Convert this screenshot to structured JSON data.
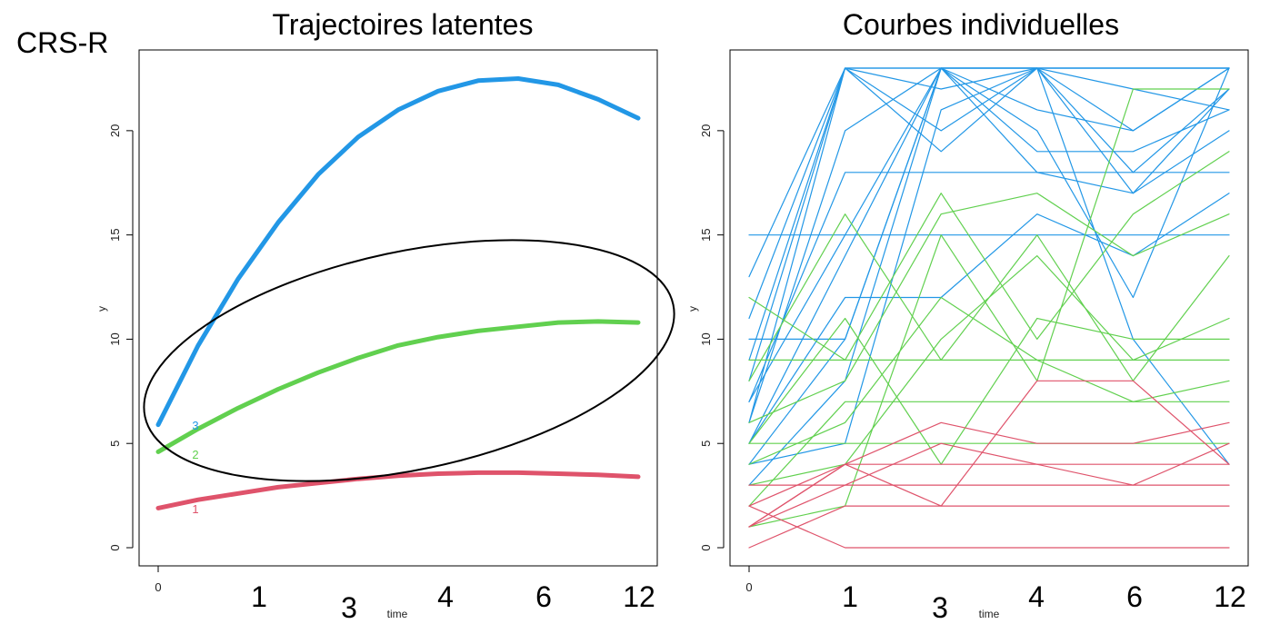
{
  "page": {
    "label": "CRS-R"
  },
  "colors": {
    "group1": "#df536b",
    "group2": "#61d04f",
    "group3": "#2297e6",
    "ellipse": "#000000"
  },
  "chart_data": [
    {
      "type": "line",
      "title": "Trajectoires latentes",
      "xlabel": "time",
      "ylabel": "y",
      "xlim": [
        0,
        12
      ],
      "ylim": [
        0,
        23
      ],
      "grid": false,
      "x_ticks": [
        0
      ],
      "y_ticks": [
        0,
        5,
        10,
        15,
        20
      ],
      "time_labels": [
        "1",
        "3",
        "4",
        "6",
        "12"
      ],
      "series": [
        {
          "name": "1",
          "color": "#df536b",
          "x": [
            0,
            1,
            2,
            3,
            4,
            5,
            6,
            7,
            8,
            9,
            10,
            11,
            12
          ],
          "values": [
            1.9,
            2.3,
            2.6,
            2.9,
            3.1,
            3.3,
            3.45,
            3.55,
            3.6,
            3.6,
            3.55,
            3.5,
            3.4
          ]
        },
        {
          "name": "2",
          "color": "#61d04f",
          "x": [
            0,
            1,
            2,
            3,
            4,
            5,
            6,
            7,
            8,
            9,
            10,
            11,
            12
          ],
          "values": [
            4.6,
            5.7,
            6.7,
            7.6,
            8.4,
            9.1,
            9.7,
            10.1,
            10.4,
            10.6,
            10.8,
            10.85,
            10.8
          ]
        },
        {
          "name": "3",
          "color": "#2297e6",
          "x": [
            0,
            1,
            2,
            3,
            4,
            5,
            6,
            7,
            8,
            9,
            10,
            11,
            12
          ],
          "values": [
            5.9,
            9.7,
            12.9,
            15.6,
            17.9,
            19.7,
            21.0,
            21.9,
            22.4,
            22.5,
            22.2,
            21.5,
            20.6
          ]
        }
      ]
    },
    {
      "type": "line",
      "title": "Courbes individuelles",
      "xlabel": "time",
      "ylabel": "y",
      "xlim": [
        0,
        12
      ],
      "ylim": [
        0,
        23
      ],
      "grid": false,
      "x_ticks": [
        0
      ],
      "y_ticks": [
        0,
        5,
        10,
        15,
        20
      ],
      "time_labels": [
        "1",
        "3",
        "4",
        "6",
        "12"
      ],
      "x_positions": [
        0,
        2.4,
        4.8,
        7.2,
        9.6,
        12
      ],
      "series": [
        {
          "name": "",
          "color": "#2297e6",
          "values": [
            13,
            23,
            23,
            23,
            23,
            23
          ]
        },
        {
          "name": "",
          "color": "#2297e6",
          "values": [
            15,
            15,
            15,
            15,
            15,
            15
          ]
        },
        {
          "name": "",
          "color": "#2297e6",
          "values": [
            10,
            10,
            23,
            23,
            20,
            23
          ]
        },
        {
          "name": "",
          "color": "#2297e6",
          "values": [
            8,
            23,
            20,
            23,
            18,
            22
          ]
        },
        {
          "name": "",
          "color": "#2297e6",
          "values": [
            7,
            18,
            18,
            18,
            18,
            18
          ]
        },
        {
          "name": "",
          "color": "#2297e6",
          "values": [
            6,
            20,
            23,
            19,
            19,
            21
          ]
        },
        {
          "name": "",
          "color": "#2297e6",
          "values": [
            5,
            12,
            12,
            16,
            14,
            17
          ]
        },
        {
          "name": "",
          "color": "#2297e6",
          "values": [
            4,
            10,
            23,
            20,
            12,
            23
          ]
        },
        {
          "name": "",
          "color": "#2297e6",
          "values": [
            9,
            23,
            22,
            23,
            23,
            23
          ]
        },
        {
          "name": "",
          "color": "#2297e6",
          "values": [
            4,
            5,
            21,
            23,
            10,
            4
          ]
        },
        {
          "name": "",
          "color": "#2297e6",
          "values": [
            7,
            15,
            23,
            23,
            17,
            22
          ]
        },
        {
          "name": "",
          "color": "#2297e6",
          "values": [
            3,
            8,
            23,
            23,
            22,
            21
          ]
        },
        {
          "name": "",
          "color": "#2297e6",
          "values": [
            11,
            23,
            19,
            23,
            23,
            23
          ]
        },
        {
          "name": "",
          "color": "#2297e6",
          "values": [
            5,
            14,
            23,
            18,
            17,
            20
          ]
        },
        {
          "name": "",
          "color": "#2297e6",
          "values": [
            6,
            23,
            23,
            21,
            20,
            23
          ]
        },
        {
          "name": "",
          "color": "#61d04f",
          "values": [
            12,
            9,
            17,
            10,
            16,
            19
          ]
        },
        {
          "name": "",
          "color": "#61d04f",
          "values": [
            8,
            16,
            9,
            15,
            8,
            14
          ]
        },
        {
          "name": "",
          "color": "#61d04f",
          "values": [
            6,
            8,
            16,
            17,
            14,
            16
          ]
        },
        {
          "name": "",
          "color": "#61d04f",
          "values": [
            5,
            11,
            4,
            11,
            10,
            10
          ]
        },
        {
          "name": "",
          "color": "#61d04f",
          "values": [
            4,
            6,
            12,
            9,
            7,
            8
          ]
        },
        {
          "name": "",
          "color": "#61d04f",
          "values": [
            3,
            4,
            10,
            14,
            9,
            11
          ]
        },
        {
          "name": "",
          "color": "#61d04f",
          "values": [
            2,
            7,
            7,
            7,
            7,
            7
          ]
        },
        {
          "name": "",
          "color": "#61d04f",
          "values": [
            9,
            9,
            9,
            9,
            9,
            9
          ]
        },
        {
          "name": "",
          "color": "#61d04f",
          "values": [
            1,
            2,
            15,
            8,
            22,
            22
          ]
        },
        {
          "name": "",
          "color": "#61d04f",
          "values": [
            5,
            5,
            5,
            5,
            5,
            5
          ]
        },
        {
          "name": "",
          "color": "#df536b",
          "values": [
            1,
            4,
            4,
            4,
            4,
            4
          ]
        },
        {
          "name": "",
          "color": "#df536b",
          "values": [
            0,
            2,
            2,
            2,
            2,
            2
          ]
        },
        {
          "name": "",
          "color": "#df536b",
          "values": [
            2,
            0,
            0,
            0,
            0,
            0
          ]
        },
        {
          "name": "",
          "color": "#df536b",
          "values": [
            3,
            3,
            3,
            3,
            3,
            3
          ]
        },
        {
          "name": "",
          "color": "#df536b",
          "values": [
            1,
            4,
            6,
            5,
            5,
            6
          ]
        },
        {
          "name": "",
          "color": "#df536b",
          "values": [
            2,
            4,
            2,
            8,
            8,
            4
          ]
        },
        {
          "name": "",
          "color": "#df536b",
          "values": [
            1,
            3,
            5,
            4,
            3,
            5
          ]
        }
      ]
    }
  ]
}
